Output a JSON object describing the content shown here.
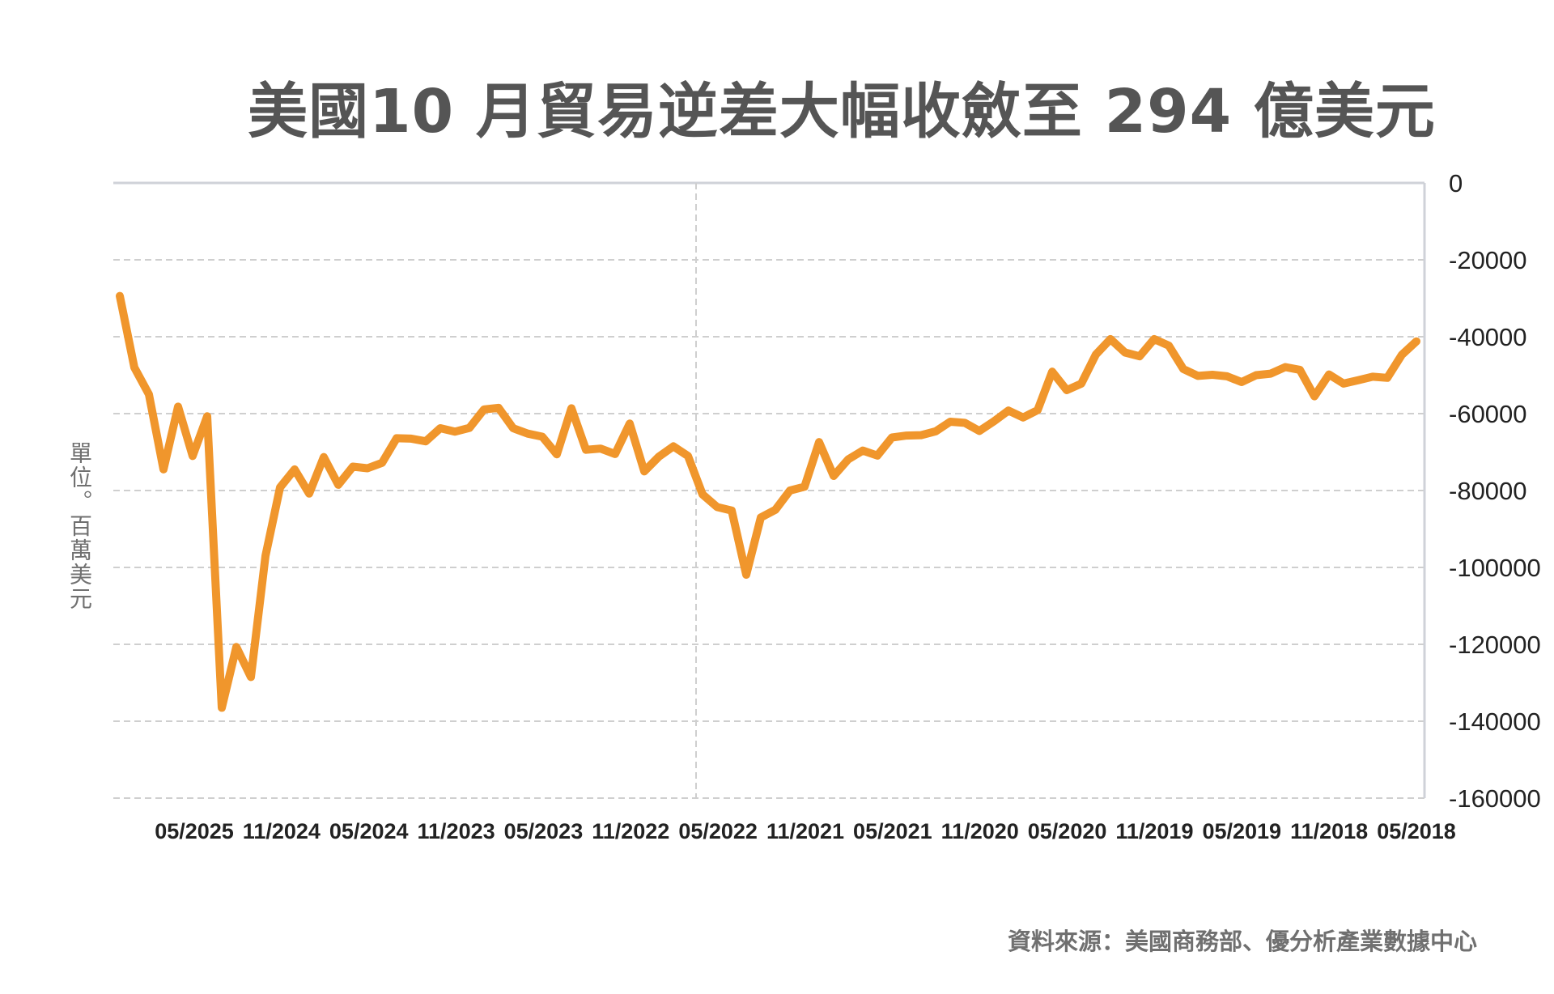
{
  "chart_data": {
    "type": "line",
    "title": "美國10 月貿易逆差大幅收斂至 294 億美元",
    "ylabel": "單位。百萬美元",
    "source": "資料來源：美國商務部、優分析產業數據中心",
    "ylim": [
      -160000,
      0
    ],
    "y_ticks": [
      0,
      -20000,
      -40000,
      -60000,
      -80000,
      -100000,
      -120000,
      -140000,
      -160000
    ],
    "y_axis_side": "right",
    "x_order": "newest-to-oldest (left to right)",
    "x_tick_labels": [
      "05/2025",
      "11/2024",
      "05/2024",
      "11/2023",
      "05/2023",
      "11/2022",
      "05/2022",
      "11/2021",
      "05/2021",
      "11/2020",
      "05/2020",
      "11/2019",
      "05/2019",
      "11/2018",
      "05/2018"
    ],
    "grid": "horizontal dashed",
    "color": "#F0962C",
    "series": [
      {
        "values": [
          -29400,
          -48000,
          -55000,
          -74500,
          -58200,
          -71000,
          -60700,
          -136500,
          -120700,
          -128500,
          -97000,
          -79200,
          -74500,
          -80800,
          -71300,
          -78500,
          -73800,
          -74200,
          -72800,
          -66400,
          -66500,
          -67200,
          -63800,
          -64700,
          -63700,
          -58900,
          -58500,
          -63800,
          -65200,
          -66000,
          -70600,
          -58600,
          -69400,
          -69100,
          -70500,
          -62600,
          -75000,
          -71200,
          -68500,
          -71000,
          -81000,
          -84300,
          -85200,
          -101900,
          -87000,
          -85000,
          -80000,
          -79000,
          -67400,
          -76200,
          -71900,
          -69600,
          -70900,
          -66200,
          -65700,
          -65600,
          -64600,
          -62100,
          -62400,
          -64500,
          -62000,
          -59200,
          -61000,
          -59100,
          -49100,
          -53900,
          -52200,
          -44600,
          -40600,
          -44100,
          -45100,
          -40600,
          -42300,
          -48400,
          -50200,
          -49900,
          -50300,
          -51800,
          -50000,
          -49600,
          -47900,
          -48600,
          -55500,
          -49800,
          -52200,
          -51300,
          -50400,
          -50700,
          -44700,
          -41200
        ]
      }
    ]
  }
}
